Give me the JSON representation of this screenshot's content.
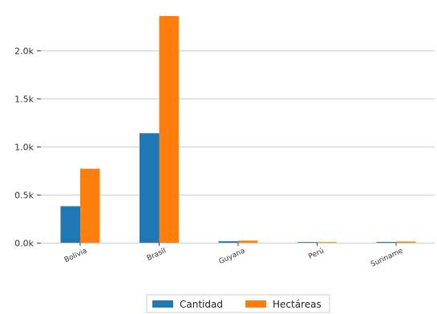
{
  "chart_data": {
    "type": "bar",
    "categories": [
      "Bolivia",
      "Brasil",
      "Guyana",
      "Perú",
      "Suriname"
    ],
    "series": [
      {
        "name": "Cantidad",
        "values": [
          380,
          1140,
          15,
          5,
          8
        ],
        "color": "#1f77b4"
      },
      {
        "name": "Hectáreas",
        "values": [
          770,
          2360,
          22,
          4,
          12
        ],
        "color": "#ff7f0e"
      }
    ],
    "yticks": [
      {
        "value": 0,
        "label": "0.0k"
      },
      {
        "value": 500,
        "label": "0.5k"
      },
      {
        "value": 1000,
        "label": "1.0k"
      },
      {
        "value": 1500,
        "label": "1.5k"
      },
      {
        "value": 2000,
        "label": "2.0k"
      }
    ],
    "ylim": [
      0,
      2360
    ],
    "title": "",
    "xlabel": "",
    "ylabel": "",
    "grid": "horizontal",
    "legend_position": "bottom-center"
  }
}
